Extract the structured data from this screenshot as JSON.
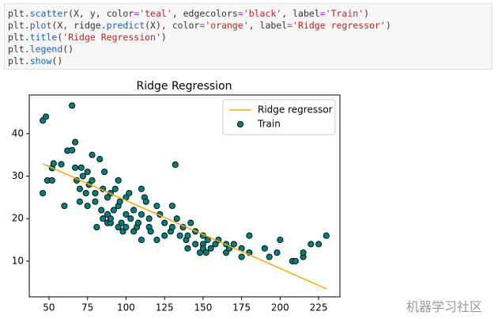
{
  "code": [
    "plt.scatter(X, y, color='teal', edgecolors='black', label='Train')",
    "plt.plot(X, ridge.predict(X), color='orange', label='Ridge regressor')",
    "plt.title('Ridge Regression')",
    "plt.legend()",
    "plt.show()"
  ],
  "chart_data": {
    "type": "scatter",
    "title": "Ridge Regression",
    "xlim": [
      37.2,
      238.8
    ],
    "ylim": [
      1.6,
      49.1
    ],
    "xticks": [
      50,
      75,
      100,
      125,
      150,
      175,
      200,
      225
    ],
    "yticks": [
      10,
      20,
      30,
      40
    ],
    "legend": "upper right",
    "series": [
      {
        "name": "Ridge regressor",
        "type": "line",
        "color": "orange",
        "x": [
          46,
          230
        ],
        "values": [
          32.9,
          3.5
        ]
      },
      {
        "name": "Train",
        "type": "scatter",
        "color": "teal",
        "edgecolor": "black",
        "x": [
          46,
          46,
          48,
          49,
          52,
          52,
          53,
          58,
          60,
          62,
          65,
          65,
          67,
          67,
          68,
          70,
          70,
          71,
          72,
          74,
          75,
          75,
          76,
          78,
          78,
          80,
          80,
          81,
          83,
          84,
          85,
          85,
          86,
          88,
          88,
          88,
          90,
          90,
          90,
          92,
          93,
          95,
          95,
          95,
          96,
          97,
          98,
          100,
          100,
          100,
          102,
          103,
          105,
          105,
          107,
          108,
          110,
          110,
          110,
          112,
          113,
          115,
          115,
          116,
          120,
          120,
          122,
          125,
          125,
          129,
          130,
          130,
          132,
          133,
          135,
          137,
          139,
          140,
          140,
          142,
          145,
          145,
          148,
          150,
          150,
          150,
          152,
          153,
          155,
          158,
          160,
          165,
          165,
          167,
          170,
          175,
          175,
          180,
          180,
          190,
          193,
          198,
          200,
          208,
          210,
          215,
          215,
          220,
          225,
          230
        ],
        "values": [
          26,
          43.1,
          44,
          29,
          31.9,
          29,
          33,
          32.8,
          23,
          36,
          36.1,
          46.6,
          38,
          32,
          29,
          27,
          24,
          32,
          30,
          26,
          31,
          23,
          28,
          29,
          35,
          26,
          24,
          18,
          34,
          22,
          27,
          20,
          31,
          25,
          19,
          21,
          26,
          19,
          20,
          22,
          27,
          23,
          29,
          18,
          24,
          19,
          17,
          21,
          25,
          18,
          26,
          20,
          17,
          22,
          18,
          19,
          21,
          27,
          15,
          25,
          24,
          20,
          18,
          17,
          23,
          15,
          21,
          16,
          19,
          17,
          23,
          18,
          32.7,
          20,
          16,
          18,
          15,
          16,
          13,
          19,
          14,
          17,
          12,
          14,
          13,
          16,
          12,
          15,
          13,
          14,
          15,
          14,
          12,
          13,
          14,
          13,
          11,
          16,
          12,
          13,
          11,
          12,
          15,
          10,
          10,
          11,
          12,
          14,
          14,
          16
        ]
      }
    ]
  },
  "watermark": "机器学习社区"
}
